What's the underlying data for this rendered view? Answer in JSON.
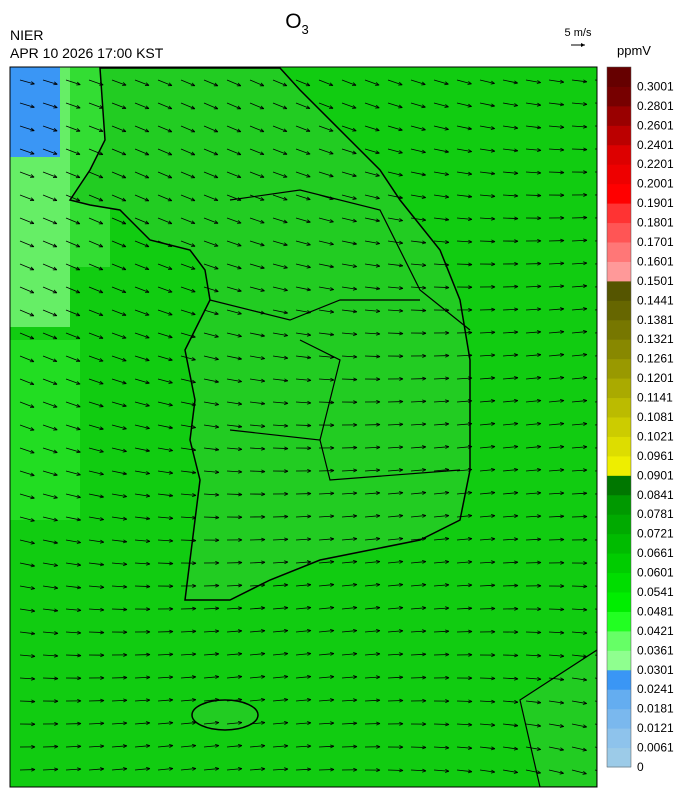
{
  "header": {
    "agency": "NIER",
    "datetime": "APR 10 2026 17:00 KST",
    "title": {
      "text": "O",
      "subscript": "3"
    },
    "wind_scale": "5 m/s"
  },
  "colorbar": {
    "unit": "ppmV",
    "levels": [
      0,
      0.0061,
      0.0121,
      0.0181,
      0.0241,
      0.0301,
      0.0361,
      0.0421,
      0.0481,
      0.0541,
      0.0601,
      0.0661,
      0.0721,
      0.0781,
      0.0841,
      0.0901,
      0.0961,
      0.1021,
      0.1081,
      0.1141,
      0.1201,
      0.1261,
      0.1321,
      0.1381,
      0.1441,
      0.1501,
      0.1601,
      0.1701,
      0.1801,
      0.1901,
      0.2001,
      0.2201,
      0.2401,
      0.2601,
      0.2801,
      0.3001
    ],
    "colors": [
      "#9ccbe8",
      "#8ec3ec",
      "#7ab8ee",
      "#64adf0",
      "#3a96f5",
      "#8fff8f",
      "#66ff66",
      "#22ff22",
      "#00ee00",
      "#00dd00",
      "#00cc00",
      "#00bb00",
      "#00aa00",
      "#009900",
      "#007700",
      "#eeee00",
      "#dddd00",
      "#cccc00",
      "#bbbb00",
      "#aaaa00",
      "#999900",
      "#888800",
      "#777700",
      "#666600",
      "#555500",
      "#ff9999",
      "#ff7777",
      "#ff5555",
      "#ff3333",
      "#ff0000",
      "#ee0000",
      "#dd0000",
      "#bb0000",
      "#990000",
      "#770000",
      "#660000"
    ]
  }
}
